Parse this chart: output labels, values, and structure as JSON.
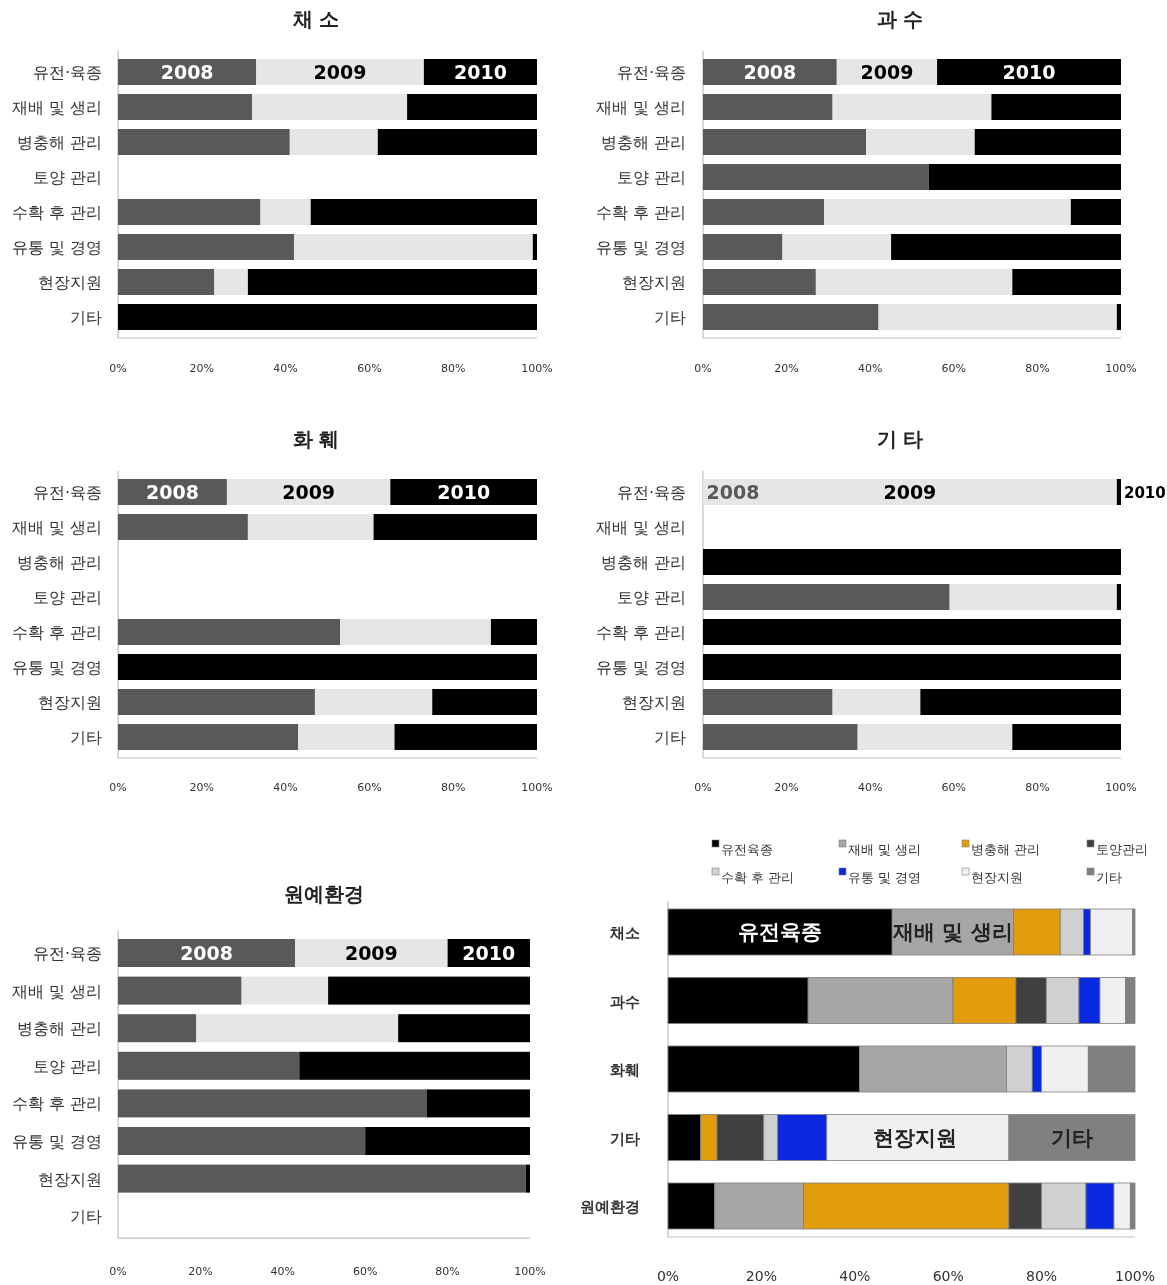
{
  "chart_data": [
    {
      "type": "bar",
      "orientation": "horizontal",
      "stacked": true,
      "title": "채 소",
      "categories": [
        "유전·육종",
        "재배 및 생리",
        "병충해 관리",
        "토양 관리",
        "수확 후 관리",
        "유통 및 경영",
        "현장지원",
        "기타"
      ],
      "series": [
        {
          "name": "2008",
          "color": "#595959",
          "values": [
            33,
            32,
            41,
            0,
            34,
            42,
            23,
            0
          ]
        },
        {
          "name": "2009",
          "color": "#e6e6e6",
          "values": [
            40,
            37,
            21,
            0,
            12,
            57,
            8,
            0
          ]
        },
        {
          "name": "2010",
          "color": "#000000",
          "values": [
            27,
            31,
            38,
            0,
            54,
            1,
            69,
            100
          ]
        }
      ],
      "xlim": [
        0,
        100
      ],
      "xticks": [
        {
          "value": 0,
          "label": "0%"
        },
        {
          "value": 20,
          "label": "20%"
        },
        {
          "value": 40,
          "label": "40%"
        },
        {
          "value": 60,
          "label": "60%"
        },
        {
          "value": 80,
          "label": "80%"
        },
        {
          "value": 100,
          "label": "100%"
        }
      ]
    },
    {
      "type": "bar",
      "orientation": "horizontal",
      "stacked": true,
      "title": "과 수",
      "categories": [
        "유전·육종",
        "재배 및 생리",
        "병충해 관리",
        "토양 관리",
        "수확 후 관리",
        "유통 및 경영",
        "현장지원",
        "기타"
      ],
      "series": [
        {
          "name": "2008",
          "color": "#595959",
          "values": [
            32,
            31,
            39,
            54,
            29,
            19,
            27,
            42
          ]
        },
        {
          "name": "2009",
          "color": "#e6e6e6",
          "values": [
            24,
            38,
            26,
            0,
            59,
            26,
            47,
            57
          ]
        },
        {
          "name": "2010",
          "color": "#000000",
          "values": [
            44,
            31,
            35,
            46,
            12,
            55,
            26,
            1
          ]
        }
      ],
      "xlim": [
        0,
        100
      ],
      "xticks": [
        {
          "value": 0,
          "label": "0%"
        },
        {
          "value": 20,
          "label": "20%"
        },
        {
          "value": 40,
          "label": "40%"
        },
        {
          "value": 60,
          "label": "60%"
        },
        {
          "value": 80,
          "label": "80%"
        },
        {
          "value": 100,
          "label": "100%"
        }
      ]
    },
    {
      "type": "bar",
      "orientation": "horizontal",
      "stacked": true,
      "title": "화 훼",
      "categories": [
        "유전·육종",
        "재배 및 생리",
        "병충해 관리",
        "토양 관리",
        "수확 후 관리",
        "유통 및 경영",
        "현장지원",
        "기타"
      ],
      "series": [
        {
          "name": "2008",
          "color": "#595959",
          "values": [
            26,
            31,
            0,
            0,
            53,
            0,
            47,
            43
          ]
        },
        {
          "name": "2009",
          "color": "#e6e6e6",
          "values": [
            39,
            30,
            0,
            0,
            36,
            0,
            28,
            23
          ]
        },
        {
          "name": "2010",
          "color": "#000000",
          "values": [
            35,
            39,
            0,
            0,
            11,
            100,
            25,
            34
          ]
        }
      ],
      "xlim": [
        0,
        100
      ],
      "xticks": [
        {
          "value": 0,
          "label": "0%"
        },
        {
          "value": 20,
          "label": "20%"
        },
        {
          "value": 40,
          "label": "40%"
        },
        {
          "value": 60,
          "label": "60%"
        },
        {
          "value": 80,
          "label": "80%"
        },
        {
          "value": 100,
          "label": "100%"
        }
      ]
    },
    {
      "type": "bar",
      "orientation": "horizontal",
      "stacked": true,
      "title": "기 타",
      "categories": [
        "유전·육종",
        "재배 및 생리",
        "병충해 관리",
        "토양 관리",
        "수확 후 관리",
        "유통 및 경영",
        "현장지원",
        "기타"
      ],
      "series": [
        {
          "name": "2008",
          "color": "#595959",
          "values": [
            0,
            0,
            0,
            59,
            0,
            0,
            31,
            37
          ]
        },
        {
          "name": "2009",
          "color": "#e6e6e6",
          "values": [
            99,
            0,
            0,
            40,
            0,
            0,
            21,
            37
          ]
        },
        {
          "name": "2010",
          "color": "#000000",
          "values": [
            1,
            0,
            100,
            1,
            100,
            100,
            48,
            26
          ]
        }
      ],
      "xlim": [
        0,
        100
      ],
      "xticks": [
        {
          "value": 0,
          "label": "0%"
        },
        {
          "value": 20,
          "label": "20%"
        },
        {
          "value": 40,
          "label": "40%"
        },
        {
          "value": 60,
          "label": "60%"
        },
        {
          "value": 80,
          "label": "80%"
        },
        {
          "value": 100,
          "label": "100%"
        }
      ]
    },
    {
      "type": "bar",
      "orientation": "horizontal",
      "stacked": true,
      "title": "원예환경",
      "categories": [
        "유전·육종",
        "재배 및 생리",
        "병충해 관리",
        "토양 관리",
        "수확 후 관리",
        "유통 및 경영",
        "현장지원",
        "기타"
      ],
      "series": [
        {
          "name": "2008",
          "color": "#595959",
          "values": [
            43,
            30,
            19,
            44,
            75,
            60,
            99,
            0
          ]
        },
        {
          "name": "2009",
          "color": "#e6e6e6",
          "values": [
            37,
            21,
            49,
            0,
            0,
            0,
            0,
            0
          ]
        },
        {
          "name": "2010",
          "color": "#000000",
          "values": [
            20,
            49,
            32,
            56,
            25,
            40,
            1,
            0
          ]
        }
      ],
      "xlim": [
        0,
        100
      ],
      "xticks": [
        {
          "value": 0,
          "label": "0%"
        },
        {
          "value": 20,
          "label": "20%"
        },
        {
          "value": 40,
          "label": "40%"
        },
        {
          "value": 60,
          "label": "60%"
        },
        {
          "value": 80,
          "label": "80%"
        },
        {
          "value": 100,
          "label": "100%"
        }
      ]
    },
    {
      "type": "bar",
      "orientation": "horizontal",
      "stacked": true,
      "legend": "top",
      "categories": [
        "채소",
        "과수",
        "화훼",
        "기타",
        "원예환경"
      ],
      "series": [
        {
          "name": "유전육종",
          "color": "#000000",
          "values": [
            48,
            30,
            41,
            7,
            10
          ]
        },
        {
          "name": "재배 및 생리",
          "color": "#a6a6a6",
          "values": [
            26,
            31,
            31.5,
            0,
            19
          ]
        },
        {
          "name": "병충해 관리",
          "color": "#e39c0c",
          "values": [
            10,
            13.5,
            0,
            3.5,
            44
          ]
        },
        {
          "name": "토양관리",
          "color": "#404040",
          "values": [
            0,
            6.5,
            0,
            10,
            7
          ]
        },
        {
          "name": "수확 후 관리",
          "color": "#d0d0d0",
          "values": [
            5,
            7,
            5.5,
            3,
            9.5
          ]
        },
        {
          "name": "유통 및 경영",
          "color": "#0a28e0",
          "values": [
            1.5,
            4.5,
            2,
            10.5,
            6
          ]
        },
        {
          "name": "현장지원",
          "color": "#f0f0f0",
          "values": [
            9,
            5.5,
            10,
            39,
            3.5
          ]
        },
        {
          "name": "기타",
          "color": "#808080",
          "values": [
            0.5,
            2,
            10,
            27,
            1
          ]
        }
      ],
      "annotations": [
        "유전육종",
        "재배 및 생리",
        "현장지원",
        "기타"
      ],
      "xlim": [
        0,
        100
      ],
      "xticks": [
        {
          "value": 0,
          "label": "0%"
        },
        {
          "value": 20,
          "label": "20%"
        },
        {
          "value": 40,
          "label": "40%"
        },
        {
          "value": 60,
          "label": "60%"
        },
        {
          "value": 80,
          "label": "80%"
        },
        {
          "value": 100,
          "label": "100%"
        }
      ]
    }
  ]
}
